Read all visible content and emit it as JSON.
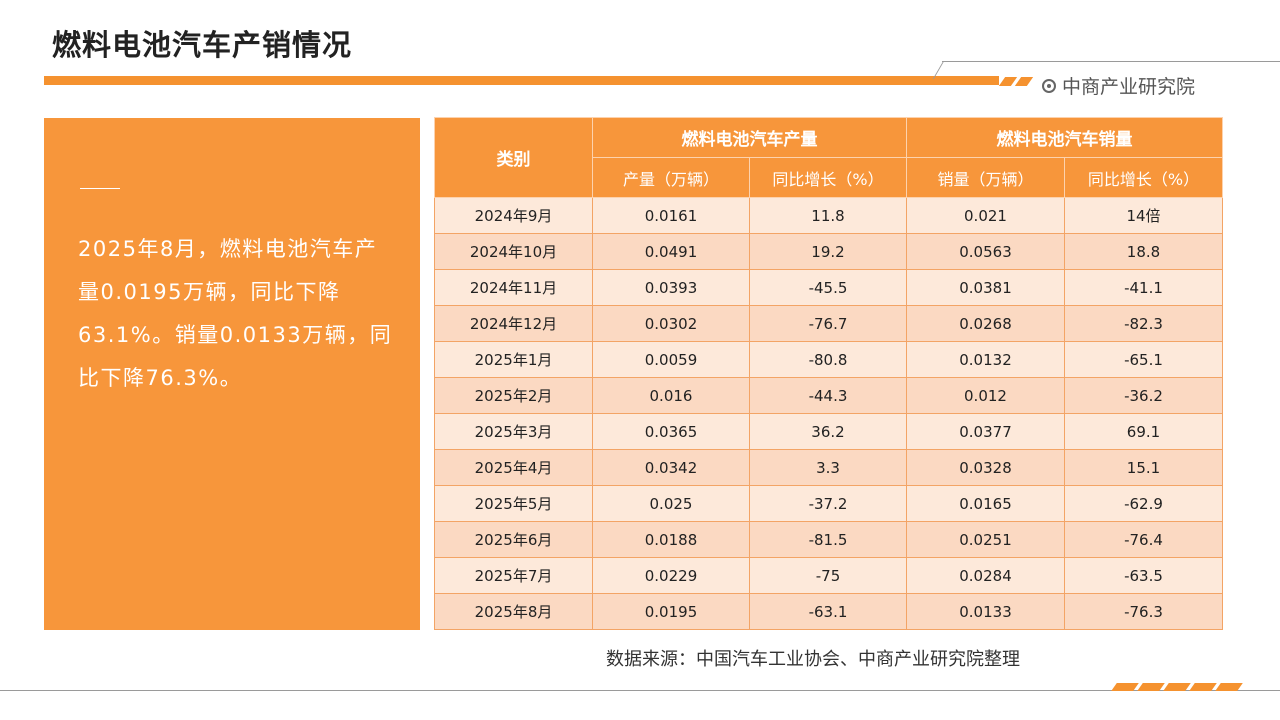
{
  "page": {
    "title": "燃料电池汽车产销情况"
  },
  "brand": {
    "name": "中商产业研究院",
    "accent": "#f5922f"
  },
  "summary": {
    "text": "2025年8月，燃料电池汽车产量0.0195万辆，同比下降63.1%。销量0.0133万辆，同比下降76.3%。"
  },
  "table": {
    "category_header": "类别",
    "production_group": "燃料电池汽车产量",
    "sales_group": "燃料电池汽车销量",
    "col_prod": "产量（万辆）",
    "col_prod_yoy": "同比增长（%）",
    "col_sales": "销量（万辆）",
    "col_sales_yoy": "同比增长（%）",
    "rows": [
      {
        "month": "2024年9月",
        "prod": "0.0161",
        "prod_yoy": "11.8",
        "sales": "0.021",
        "sales_yoy": "14倍"
      },
      {
        "month": "2024年10月",
        "prod": "0.0491",
        "prod_yoy": "19.2",
        "sales": "0.0563",
        "sales_yoy": "18.8"
      },
      {
        "month": "2024年11月",
        "prod": "0.0393",
        "prod_yoy": "-45.5",
        "sales": "0.0381",
        "sales_yoy": "-41.1"
      },
      {
        "month": "2024年12月",
        "prod": "0.0302",
        "prod_yoy": "-76.7",
        "sales": "0.0268",
        "sales_yoy": "-82.3"
      },
      {
        "month": "2025年1月",
        "prod": "0.0059",
        "prod_yoy": "-80.8",
        "sales": "0.0132",
        "sales_yoy": "-65.1"
      },
      {
        "month": "2025年2月",
        "prod": "0.016",
        "prod_yoy": "-44.3",
        "sales": "0.012",
        "sales_yoy": "-36.2"
      },
      {
        "month": "2025年3月",
        "prod": "0.0365",
        "prod_yoy": "36.2",
        "sales": "0.0377",
        "sales_yoy": "69.1"
      },
      {
        "month": "2025年4月",
        "prod": "0.0342",
        "prod_yoy": "3.3",
        "sales": "0.0328",
        "sales_yoy": "15.1"
      },
      {
        "month": "2025年5月",
        "prod": "0.025",
        "prod_yoy": "-37.2",
        "sales": "0.0165",
        "sales_yoy": "-62.9"
      },
      {
        "month": "2025年6月",
        "prod": "0.0188",
        "prod_yoy": "-81.5",
        "sales": "0.0251",
        "sales_yoy": "-76.4"
      },
      {
        "month": "2025年7月",
        "prod": "0.0229",
        "prod_yoy": "-75",
        "sales": "0.0284",
        "sales_yoy": "-63.5"
      },
      {
        "month": "2025年8月",
        "prod": "0.0195",
        "prod_yoy": "-63.1",
        "sales": "0.0133",
        "sales_yoy": "-76.3"
      }
    ]
  },
  "source": {
    "text": "数据来源：中国汽车工业协会、中商产业研究院整理"
  }
}
